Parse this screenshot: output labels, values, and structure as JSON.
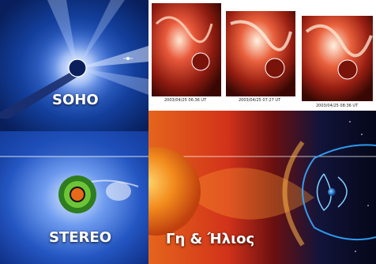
{
  "panels": {
    "soho": {
      "label": "SOHO"
    },
    "stereo": {
      "label": "STEREO"
    },
    "earth_sun": {
      "label": "Γη & Ήλιος"
    }
  },
  "timestamps": [
    "2003/04/25 06:36 UT",
    "2003/04/25 07:27 UT",
    "2003/04/25 08:36 UT"
  ],
  "colors": {
    "border": "#f3e56a",
    "coronagraph_blue": "#1a4fb8",
    "soho_blue": "#0b2a78",
    "eit_red": "#b22818",
    "solar_orange": "#f07a14",
    "space": "#06081a",
    "magnetosphere": "#35a9ff"
  }
}
